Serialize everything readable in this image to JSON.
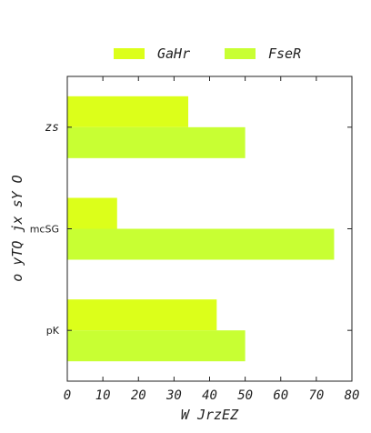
{
  "chart_data": {
    "type": "bar",
    "orientation": "horizontal",
    "categories": [
      "zs",
      "mcSG",
      "pK"
    ],
    "series": [
      {
        "name": "GaHr",
        "color": "#dcff1a",
        "values": [
          34,
          14,
          42
        ]
      },
      {
        "name": "FseR",
        "color": "#c8ff33",
        "values": [
          50,
          75,
          50
        ]
      }
    ],
    "xlabel": "W JrzEZ",
    "ylabel": "o yTQ jx sY O",
    "xlim": [
      0,
      80
    ],
    "xticks": [
      0,
      10,
      20,
      30,
      40,
      50,
      60,
      70,
      80
    ],
    "grid": false,
    "legend_position": "top"
  }
}
